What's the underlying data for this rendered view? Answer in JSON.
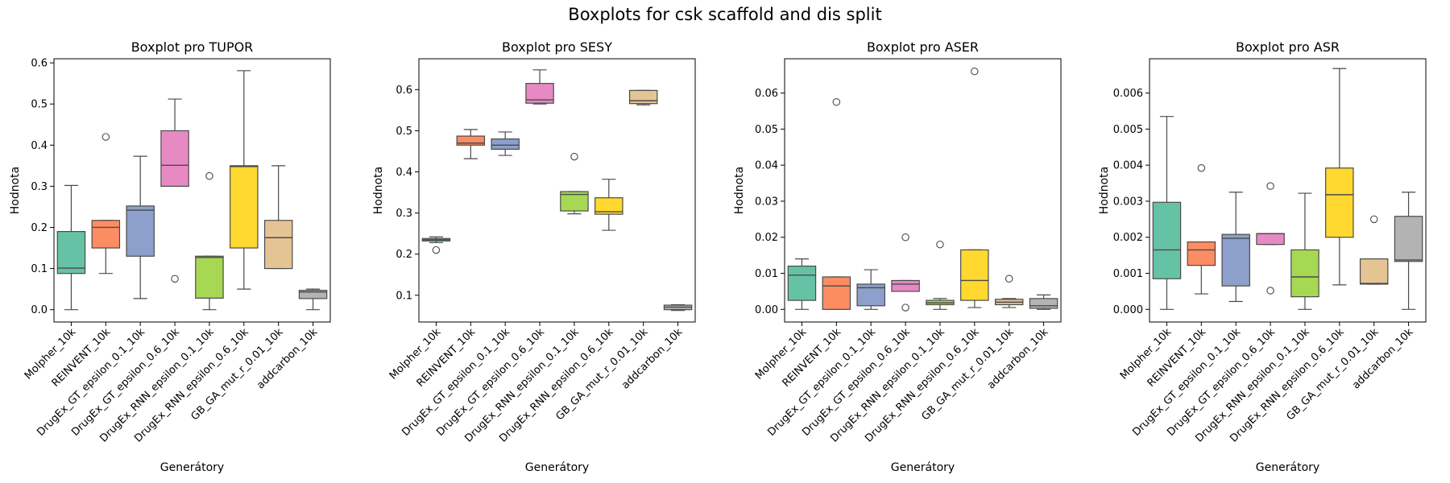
{
  "figure": {
    "suptitle": "Boxplots for csk scaffold and dis split"
  },
  "palette": [
    "#66c2a5",
    "#fc8d62",
    "#8da0cb",
    "#e78ac3",
    "#a6d854",
    "#ffd92f",
    "#e5c494",
    "#b3b3b3"
  ],
  "chart_data": [
    {
      "type": "box",
      "title": "Boxplot pro TUPOR",
      "xlabel": "Generátory",
      "ylabel": "Hodnota",
      "ylim": [
        -0.03,
        0.61
      ],
      "yticks": [
        0.0,
        0.1,
        0.2,
        0.3,
        0.4,
        0.5,
        0.6
      ],
      "tick_format": 1,
      "categories": [
        "Molpher_10k",
        "REINVENT_10k",
        "DrugEx_GT_epsilon_0.1_10k",
        "DrugEx_GT_epsilon_0.6_10k",
        "DrugEx_RNN_epsilon_0.1_10k",
        "DrugEx_RNN_epsilon_0.6_10k",
        "GB_GA_mut_r_0.01_10k",
        "addcarbon_10k"
      ],
      "boxes": [
        {
          "whislo": 0.0,
          "q1": 0.088,
          "med": 0.101,
          "q3": 0.19,
          "whishi": 0.302,
          "fliers": []
        },
        {
          "whislo": 0.088,
          "q1": 0.15,
          "med": 0.2,
          "q3": 0.217,
          "whishi": 0.217,
          "fliers": [
            0.42
          ]
        },
        {
          "whislo": 0.027,
          "q1": 0.13,
          "med": 0.242,
          "q3": 0.252,
          "whishi": 0.373,
          "fliers": []
        },
        {
          "whislo": 0.3,
          "q1": 0.3,
          "med": 0.351,
          "q3": 0.435,
          "whishi": 0.512,
          "fliers": [
            0.075
          ]
        },
        {
          "whislo": 0.0,
          "q1": 0.028,
          "med": 0.127,
          "q3": 0.13,
          "whishi": 0.13,
          "fliers": [
            0.325
          ]
        },
        {
          "whislo": 0.05,
          "q1": 0.15,
          "med": 0.348,
          "q3": 0.35,
          "whishi": 0.581,
          "fliers": []
        },
        {
          "whislo": 0.1,
          "q1": 0.1,
          "med": 0.175,
          "q3": 0.217,
          "whishi": 0.35,
          "fliers": []
        },
        {
          "whislo": 0.0,
          "q1": 0.027,
          "med": 0.043,
          "q3": 0.047,
          "whishi": 0.05,
          "fliers": []
        }
      ]
    },
    {
      "type": "box",
      "title": "Boxplot pro SESY",
      "xlabel": "Generátory",
      "ylabel": "Hodnota",
      "ylim": [
        0.035,
        0.675
      ],
      "yticks": [
        0.1,
        0.2,
        0.3,
        0.4,
        0.5,
        0.6
      ],
      "tick_format": 1,
      "categories": [
        "Molpher_10k",
        "REINVENT_10k",
        "DrugEx_GT_epsilon_0.1_10k",
        "DrugEx_GT_epsilon_0.6_10k",
        "DrugEx_RNN_epsilon_0.1_10k",
        "DrugEx_RNN_epsilon_0.6_10k",
        "GB_GA_mut_r_0.01_10k",
        "addcarbon_10k"
      ],
      "boxes": [
        {
          "whislo": 0.228,
          "q1": 0.232,
          "med": 0.235,
          "q3": 0.238,
          "whishi": 0.242,
          "fliers": [
            0.21
          ]
        },
        {
          "whislo": 0.432,
          "q1": 0.465,
          "med": 0.47,
          "q3": 0.487,
          "whishi": 0.503,
          "fliers": []
        },
        {
          "whislo": 0.44,
          "q1": 0.455,
          "med": 0.465,
          "q3": 0.48,
          "whishi": 0.497,
          "fliers": []
        },
        {
          "whislo": 0.565,
          "q1": 0.567,
          "med": 0.575,
          "q3": 0.615,
          "whishi": 0.648,
          "fliers": []
        },
        {
          "whislo": 0.298,
          "q1": 0.305,
          "med": 0.345,
          "q3": 0.352,
          "whishi": 0.352,
          "fliers": [
            0.437
          ]
        },
        {
          "whislo": 0.258,
          "q1": 0.297,
          "med": 0.303,
          "q3": 0.337,
          "whishi": 0.382,
          "fliers": []
        },
        {
          "whislo": 0.563,
          "q1": 0.566,
          "med": 0.573,
          "q3": 0.598,
          "whishi": 0.598,
          "fliers": []
        },
        {
          "whislo": 0.063,
          "q1": 0.065,
          "med": 0.071,
          "q3": 0.076,
          "whishi": 0.077,
          "fliers": []
        }
      ]
    },
    {
      "type": "box",
      "title": "Boxplot pro ASER",
      "xlabel": "Generátory",
      "ylabel": "Hodnota",
      "ylim": [
        -0.0035,
        0.0695
      ],
      "yticks": [
        0.0,
        0.01,
        0.02,
        0.03,
        0.04,
        0.05,
        0.06
      ],
      "tick_format": 2,
      "categories": [
        "Molpher_10k",
        "REINVENT_10k",
        "DrugEx_GT_epsilon_0.1_10k",
        "DrugEx_GT_epsilon_0.6_10k",
        "DrugEx_RNN_epsilon_0.1_10k",
        "DrugEx_RNN_epsilon_0.6_10k",
        "GB_GA_mut_r_0.01_10k",
        "addcarbon_10k"
      ],
      "boxes": [
        {
          "whislo": 0.0,
          "q1": 0.0025,
          "med": 0.0095,
          "q3": 0.012,
          "whishi": 0.014,
          "fliers": []
        },
        {
          "whislo": 0.0,
          "q1": 0.0,
          "med": 0.0065,
          "q3": 0.009,
          "whishi": 0.009,
          "fliers": [
            0.0575
          ]
        },
        {
          "whislo": 0.0,
          "q1": 0.001,
          "med": 0.006,
          "q3": 0.007,
          "whishi": 0.011,
          "fliers": []
        },
        {
          "whislo": 0.005,
          "q1": 0.005,
          "med": 0.007,
          "q3": 0.008,
          "whishi": 0.008,
          "fliers": [
            0.02,
            0.0005
          ]
        },
        {
          "whislo": 0.0,
          "q1": 0.0013,
          "med": 0.0018,
          "q3": 0.0025,
          "whishi": 0.003,
          "fliers": [
            0.018
          ]
        },
        {
          "whislo": 0.0005,
          "q1": 0.0025,
          "med": 0.008,
          "q3": 0.0165,
          "whishi": 0.0165,
          "fliers": [
            0.066
          ]
        },
        {
          "whislo": 0.0005,
          "q1": 0.0013,
          "med": 0.002,
          "q3": 0.0028,
          "whishi": 0.003,
          "fliers": [
            0.0085
          ]
        },
        {
          "whislo": 0.0,
          "q1": 0.0003,
          "med": 0.001,
          "q3": 0.003,
          "whishi": 0.004,
          "fliers": []
        }
      ]
    },
    {
      "type": "box",
      "title": "Boxplot pro ASR",
      "xlabel": "Generátory",
      "ylabel": "Hodnota",
      "ylim": [
        -0.00035,
        0.00695
      ],
      "yticks": [
        0.0,
        0.001,
        0.002,
        0.003,
        0.004,
        0.005,
        0.006
      ],
      "tick_format": 3,
      "categories": [
        "Molpher_10k",
        "REINVENT_10k",
        "DrugEx_GT_epsilon_0.1_10k",
        "DrugEx_GT_epsilon_0.6_10k",
        "DrugEx_RNN_epsilon_0.1_10k",
        "DrugEx_RNN_epsilon_0.6_10k",
        "GB_GA_mut_r_0.01_10k",
        "addcarbon_10k"
      ],
      "boxes": [
        {
          "whislo": 0.0,
          "q1": 0.00085,
          "med": 0.00165,
          "q3": 0.00297,
          "whishi": 0.00535,
          "fliers": []
        },
        {
          "whislo": 0.00043,
          "q1": 0.00122,
          "med": 0.00165,
          "q3": 0.00187,
          "whishi": 0.00187,
          "fliers": [
            0.00392
          ]
        },
        {
          "whislo": 0.00022,
          "q1": 0.00065,
          "med": 0.00197,
          "q3": 0.00208,
          "whishi": 0.00325,
          "fliers": []
        },
        {
          "whislo": 0.0018,
          "q1": 0.0018,
          "med": 0.0021,
          "q3": 0.0021,
          "whishi": 0.0021,
          "fliers": [
            0.00342,
            0.00052
          ]
        },
        {
          "whislo": 0.0,
          "q1": 0.00035,
          "med": 0.0009,
          "q3": 0.00165,
          "whishi": 0.00322,
          "fliers": []
        },
        {
          "whislo": 0.00068,
          "q1": 0.002,
          "med": 0.00318,
          "q3": 0.00392,
          "whishi": 0.00668,
          "fliers": []
        },
        {
          "whislo": 0.0007,
          "q1": 0.0007,
          "med": 0.00072,
          "q3": 0.0014,
          "whishi": 0.0014,
          "fliers": [
            0.0025
          ]
        },
        {
          "whislo": 0.0,
          "q1": 0.00133,
          "med": 0.00137,
          "q3": 0.00258,
          "whishi": 0.00325,
          "fliers": []
        }
      ]
    }
  ]
}
